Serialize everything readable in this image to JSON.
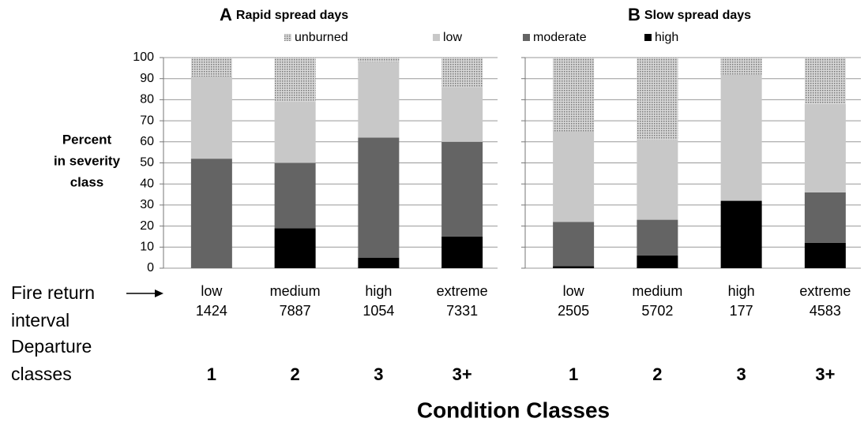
{
  "chart_data": {
    "type": "stacked_bar",
    "series": [
      {
        "name": "high",
        "color": "#000000",
        "values": [
          [
            0,
            19,
            5,
            15
          ],
          [
            1,
            6,
            32,
            12
          ]
        ]
      },
      {
        "name": "moderate",
        "color": "#646464",
        "values": [
          [
            52,
            31,
            57,
            45
          ],
          [
            21,
            17,
            0,
            24
          ]
        ]
      },
      {
        "name": "low",
        "color": "#c8c8c8",
        "values": [
          [
            39,
            29,
            36,
            26
          ],
          [
            43,
            38,
            60,
            42
          ]
        ]
      },
      {
        "name": "unburned",
        "color": "#a9a9a9",
        "values": [
          [
            9,
            21,
            2,
            14
          ],
          [
            35,
            39,
            8,
            22
          ]
        ]
      }
    ],
    "panels": [
      {
        "label": "A",
        "title": "Rapid spread days",
        "categories": [
          "low",
          "medium",
          "high",
          "extreme"
        ],
        "counts": [
          1424,
          7887,
          1054,
          7331
        ],
        "classes": [
          "1",
          "2",
          "3",
          "3+"
        ]
      },
      {
        "label": "B",
        "title": "Slow spread days",
        "categories": [
          "low",
          "medium",
          "high",
          "extreme"
        ],
        "counts": [
          2505,
          5702,
          177,
          4583
        ],
        "classes": [
          "1",
          "2",
          "3",
          "3+"
        ]
      }
    ],
    "y_label": [
      "Percent",
      "in severity",
      "class"
    ],
    "row_label": [
      "Fire return",
      "interval",
      "Departure",
      "classes"
    ],
    "x_label": "Condition Classes",
    "ylim": [
      0,
      100
    ],
    "yticks": [
      0,
      10,
      20,
      30,
      40,
      50,
      60,
      70,
      80,
      90,
      100
    ],
    "grid": true
  }
}
